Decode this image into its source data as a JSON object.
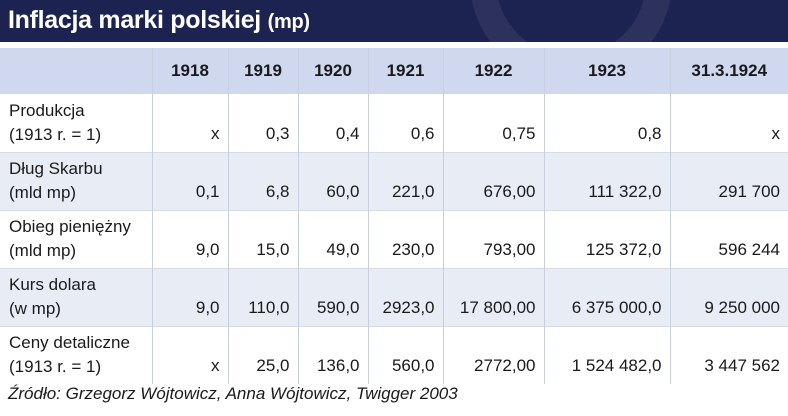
{
  "title": "Inflacja marki polskiej",
  "title_unit": "(mp)",
  "colors": {
    "title_bar": "#1c2350",
    "header_row": "#cfd8ee",
    "stripe_row": "#e8ecf5"
  },
  "chart_data": {
    "type": "table",
    "title": "Inflacja marki polskiej (mp)",
    "columns": [
      "",
      "1918",
      "1919",
      "1920",
      "1921",
      "1922",
      "1923",
      "31.3.1924"
    ],
    "rows": [
      {
        "label": [
          "Produkcja",
          "(1913 r. = 1)"
        ],
        "values": [
          "x",
          "0,3",
          "0,4",
          "0,6",
          "0,75",
          "0,8",
          "x"
        ]
      },
      {
        "label": [
          "Dług Skarbu",
          "(mld mp)"
        ],
        "values": [
          "0,1",
          "6,8",
          "60,0",
          "221,0",
          "676,00",
          "111 322,0",
          "291 700"
        ]
      },
      {
        "label": [
          "Obieg pieniężny",
          "(mld mp)"
        ],
        "values": [
          "9,0",
          "15,0",
          "49,0",
          "230,0",
          "793,00",
          "125 372,0",
          "596 244"
        ]
      },
      {
        "label": [
          "Kurs dolara",
          "(w mp)"
        ],
        "values": [
          "9,0",
          "110,0",
          "590,0",
          "2923,0",
          "17 800,00",
          "6 375 000,0",
          "9 250 000"
        ]
      },
      {
        "label": [
          "Ceny detaliczne",
          "(1913 r. = 1)"
        ],
        "values": [
          "x",
          "25,0",
          "136,0",
          "560,0",
          "2772,00",
          "1 524 482,0",
          "3 447 562"
        ]
      }
    ]
  },
  "source": "Źródło: Grzegorz Wójtowicz, Anna Wójtowicz, Twigger 2003"
}
